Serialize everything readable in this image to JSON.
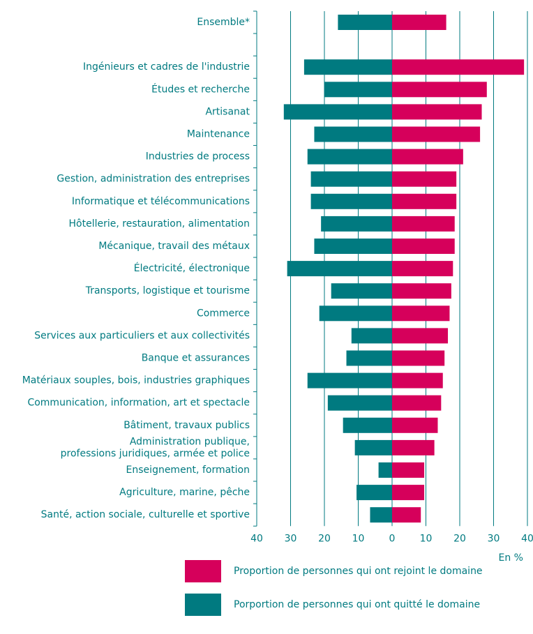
{
  "chart_data": {
    "type": "butterfly",
    "categories": [
      "Ensemble*",
      null,
      "Ingénieurs et cadres de l'industrie",
      "Études et recherche",
      "Artisanat",
      "Maintenance",
      "Industries de process",
      "Gestion, administration des entreprises",
      "Informatique et télécommunications",
      "Hôtellerie, restauration, alimentation",
      "Mécanique, travail des métaux",
      "Électricité, électronique",
      "Transports, logistique et tourisme",
      "Commerce",
      "Services aux particuliers et aux collectivités",
      "Banque et assurances",
      "Matériaux souples, bois, industries graphiques",
      "Communication, information, art et spectacle",
      "Bâtiment, travaux publics",
      [
        "Administration publique,",
        "professions juridiques, armée et police"
      ],
      "Enseignement, formation",
      "Agriculture, marine, pêche",
      "Santé, action sociale, culturelle et sportive"
    ],
    "series": [
      {
        "name": "Proportion de personnes qui ont rejoint le domaine",
        "color": "#d6005b",
        "values": [
          16,
          null,
          39,
          28,
          26.5,
          26,
          21,
          19,
          19,
          18.5,
          18.5,
          18,
          17.5,
          17,
          16.5,
          15.5,
          15,
          14.5,
          13.5,
          12.5,
          9.5,
          9.5,
          8.5
        ]
      },
      {
        "name": "Porportion de personnes qui ont quitté le domaine",
        "color": "#007a80",
        "values": [
          -16,
          null,
          -26,
          -20,
          -32,
          -23,
          -25,
          -24,
          -24,
          -21,
          -23,
          -31,
          -18,
          -21.5,
          -12,
          -13.5,
          -25,
          -19,
          -14.5,
          -11,
          -4,
          -10.5,
          -6.5
        ]
      }
    ],
    "xlim": [
      -40,
      40
    ],
    "xticks": [
      {
        "value": -40,
        "label": "40"
      },
      {
        "value": -30,
        "label": "30"
      },
      {
        "value": -20,
        "label": "20"
      },
      {
        "value": -10,
        "label": "10"
      },
      0,
      10,
      20,
      30,
      40
    ],
    "x_label": "En %",
    "grid": true
  }
}
